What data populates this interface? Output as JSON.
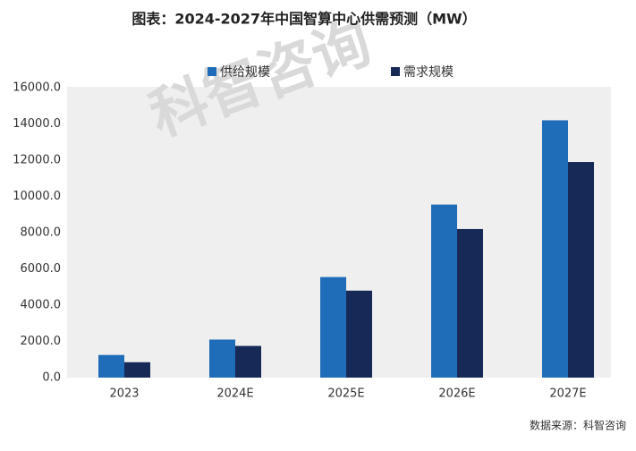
{
  "chart_data": {
    "type": "bar",
    "title": "图表：2024-2027年中国智算中心供需预测（MW）",
    "categories": [
      "2023",
      "2024E",
      "2025E",
      "2026E",
      "2027E"
    ],
    "series": [
      {
        "name": "供给规模",
        "color": "#1f6cb8",
        "values": [
          1250,
          2100,
          5550,
          9550,
          14200
        ]
      },
      {
        "name": "需求规模",
        "color": "#172a57",
        "values": [
          850,
          1750,
          4800,
          8200,
          11900
        ]
      }
    ],
    "ylim": [
      0,
      16000
    ],
    "yticks": [
      {
        "value": 0,
        "label": "0.0"
      },
      {
        "value": 2000,
        "label": "2000.0"
      },
      {
        "value": 4000,
        "label": "4000.0"
      },
      {
        "value": 6000,
        "label": "6000.0"
      },
      {
        "value": 8000,
        "label": "8000.0"
      },
      {
        "value": 10000,
        "label": "10000.0"
      },
      {
        "value": 12000,
        "label": "12000.0"
      },
      {
        "value": 14000,
        "label": "14000.0"
      },
      {
        "value": 16000,
        "label": "16000.0"
      }
    ],
    "grid": false,
    "legend": "top",
    "source": "数据来源：科智咨询",
    "watermark": "科智咨询"
  }
}
